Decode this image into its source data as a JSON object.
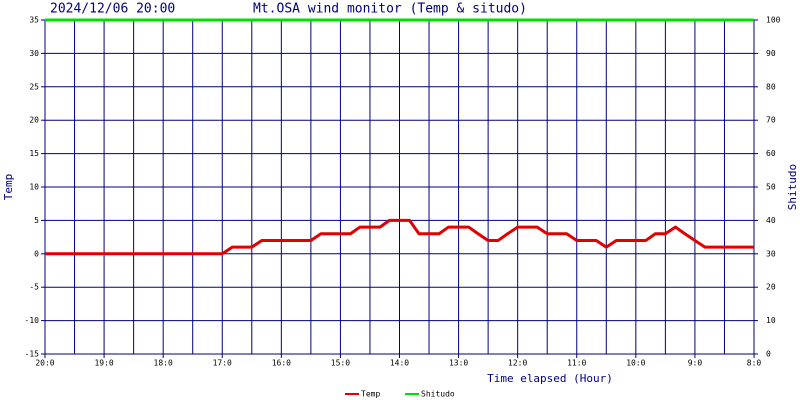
{
  "chart_data": {
    "type": "line",
    "title": "Mt.OSA wind monitor (Temp & situdo)",
    "subtitle": "2024/12/06 20:00",
    "x_label": "Time elapsed (Hour)",
    "y_label": "Temp",
    "y2_label": "Shitudo",
    "x": [
      0,
      3,
      3.17,
      3.5,
      3.67,
      4.5,
      4.67,
      5.17,
      5.33,
      5.67,
      5.83,
      6.17,
      6.33,
      6.67,
      6.83,
      7.17,
      7.33,
      7.5,
      7.67,
      7.83,
      8,
      8.33,
      8.5,
      8.83,
      9,
      9.33,
      9.5,
      9.67,
      10.17,
      10.33,
      10.5,
      10.67,
      10.83,
      11,
      11.17,
      12
    ],
    "series": [
      {
        "name": "Temp",
        "color": "#e00000",
        "values": [
          0,
          0,
          1,
          1,
          2,
          2,
          3,
          3,
          4,
          4,
          5,
          5,
          3,
          3,
          4,
          4,
          3,
          2,
          2,
          3,
          4,
          4,
          3,
          3,
          2,
          2,
          1,
          2,
          2,
          3,
          3,
          4,
          3,
          2,
          1,
          1
        ]
      },
      {
        "name": "Shitudo",
        "color": "#00e000",
        "axis": "y2",
        "values": [
          100,
          100,
          100,
          100,
          100,
          100,
          100,
          100,
          100,
          100,
          100,
          100,
          100,
          100,
          100,
          100,
          100,
          100,
          100,
          100,
          100,
          100,
          100,
          100,
          100,
          100,
          100,
          100,
          100,
          100,
          100,
          100,
          100,
          100,
          100,
          100
        ]
      }
    ],
    "xlim": [
      0,
      12
    ],
    "xticks": [
      {
        "value": 0,
        "label": "20:0"
      },
      {
        "value": 1,
        "label": "19:0"
      },
      {
        "value": 2,
        "label": "18:0"
      },
      {
        "value": 3,
        "label": "17:0"
      },
      {
        "value": 4,
        "label": "16:0"
      },
      {
        "value": 5,
        "label": "15:0"
      },
      {
        "value": 6,
        "label": "14:0"
      },
      {
        "value": 7,
        "label": "13:0"
      },
      {
        "value": 8,
        "label": "12:0"
      },
      {
        "value": 9,
        "label": "11:0"
      },
      {
        "value": 10,
        "label": "10:0"
      },
      {
        "value": 11,
        "label": "9:0"
      },
      {
        "value": 12,
        "label": "8:0"
      }
    ],
    "xgrid": [
      0,
      0.5,
      1,
      1.5,
      2,
      2.5,
      3,
      3.5,
      4,
      4.5,
      5,
      5.5,
      6,
      6.5,
      7,
      7.5,
      8,
      8.5,
      9,
      9.5,
      10,
      10.5,
      11,
      11.5,
      12
    ],
    "ylim": [
      -15,
      35
    ],
    "yticks": [
      -15,
      -10,
      -5,
      0,
      5,
      10,
      15,
      20,
      25,
      30,
      35
    ],
    "y2lim": [
      0,
      100
    ],
    "y2ticks": [
      0,
      10,
      20,
      30,
      40,
      50,
      60,
      70,
      80,
      90,
      100
    ],
    "grid": true,
    "grid_color": "#000080",
    "legend": "bottom"
  }
}
